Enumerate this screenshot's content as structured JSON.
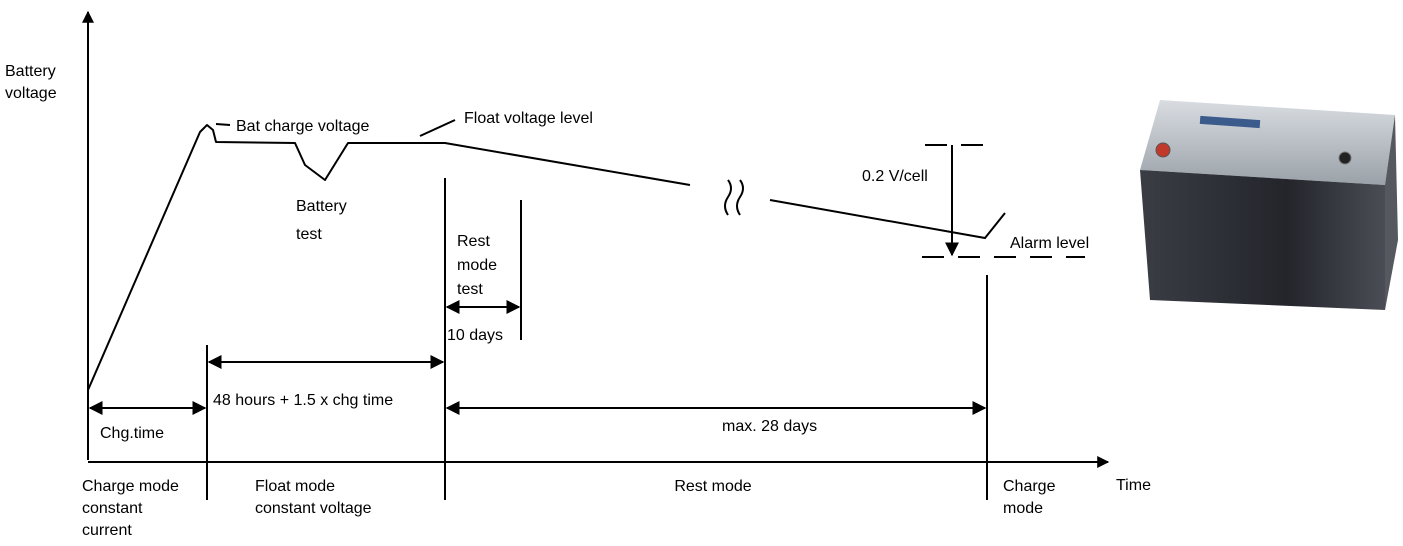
{
  "axes": {
    "y_label": [
      "Battery",
      "voltage"
    ],
    "x_label": "Time"
  },
  "curve_labels": {
    "bat_charge_voltage": "Bat charge voltage",
    "float_voltage_level": "Float voltage level",
    "battery_test": [
      "Battery",
      "test"
    ],
    "rest_mode_test": [
      "Rest",
      "mode",
      "test"
    ],
    "cell_drop": "0.2 V/cell",
    "alarm_level": "Alarm level"
  },
  "durations": {
    "rest_test": "10 days",
    "float": "48 hours + 1.5 x chg time",
    "charge": "Chg.time",
    "rest": "max. 28 days"
  },
  "modes": {
    "charge_mode": [
      "Charge mode",
      "constant",
      "current"
    ],
    "float_mode": [
      "Float mode",
      "constant voltage"
    ],
    "rest_mode": "Rest mode",
    "charge_mode_end": [
      "Charge",
      "mode"
    ]
  }
}
